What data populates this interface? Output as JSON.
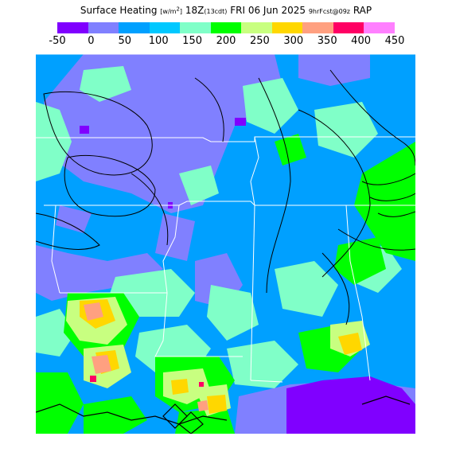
{
  "header": {
    "title_main": "Surface Heating",
    "title_units_prefix": "[w/m",
    "title_units_sup": "2",
    "title_units_suffix": "]",
    "valid_z": "18Z",
    "valid_local": "(13cdt)",
    "valid_date": "FRI 06 Jun 2025",
    "forecast_info": "9hrFcst@09z",
    "model": "RAP"
  },
  "colorbar": {
    "ticks": [
      "-50",
      "0",
      "50",
      "100",
      "150",
      "200",
      "250",
      "300",
      "350",
      "400",
      "450"
    ],
    "colors": [
      "#8000ff",
      "#8080ff",
      "#00a0ff",
      "#00c8ff",
      "#80ffc8",
      "#00ff00",
      "#c8ff80",
      "#ffd700",
      "#ffa080",
      "#ff0064",
      "#ff80ff"
    ]
  },
  "map": {
    "description_colors": {
      "negative": "#8000ff",
      "low": "#8080ff",
      "moderate": "#00a0ff",
      "high": "#00ff00"
    }
  }
}
